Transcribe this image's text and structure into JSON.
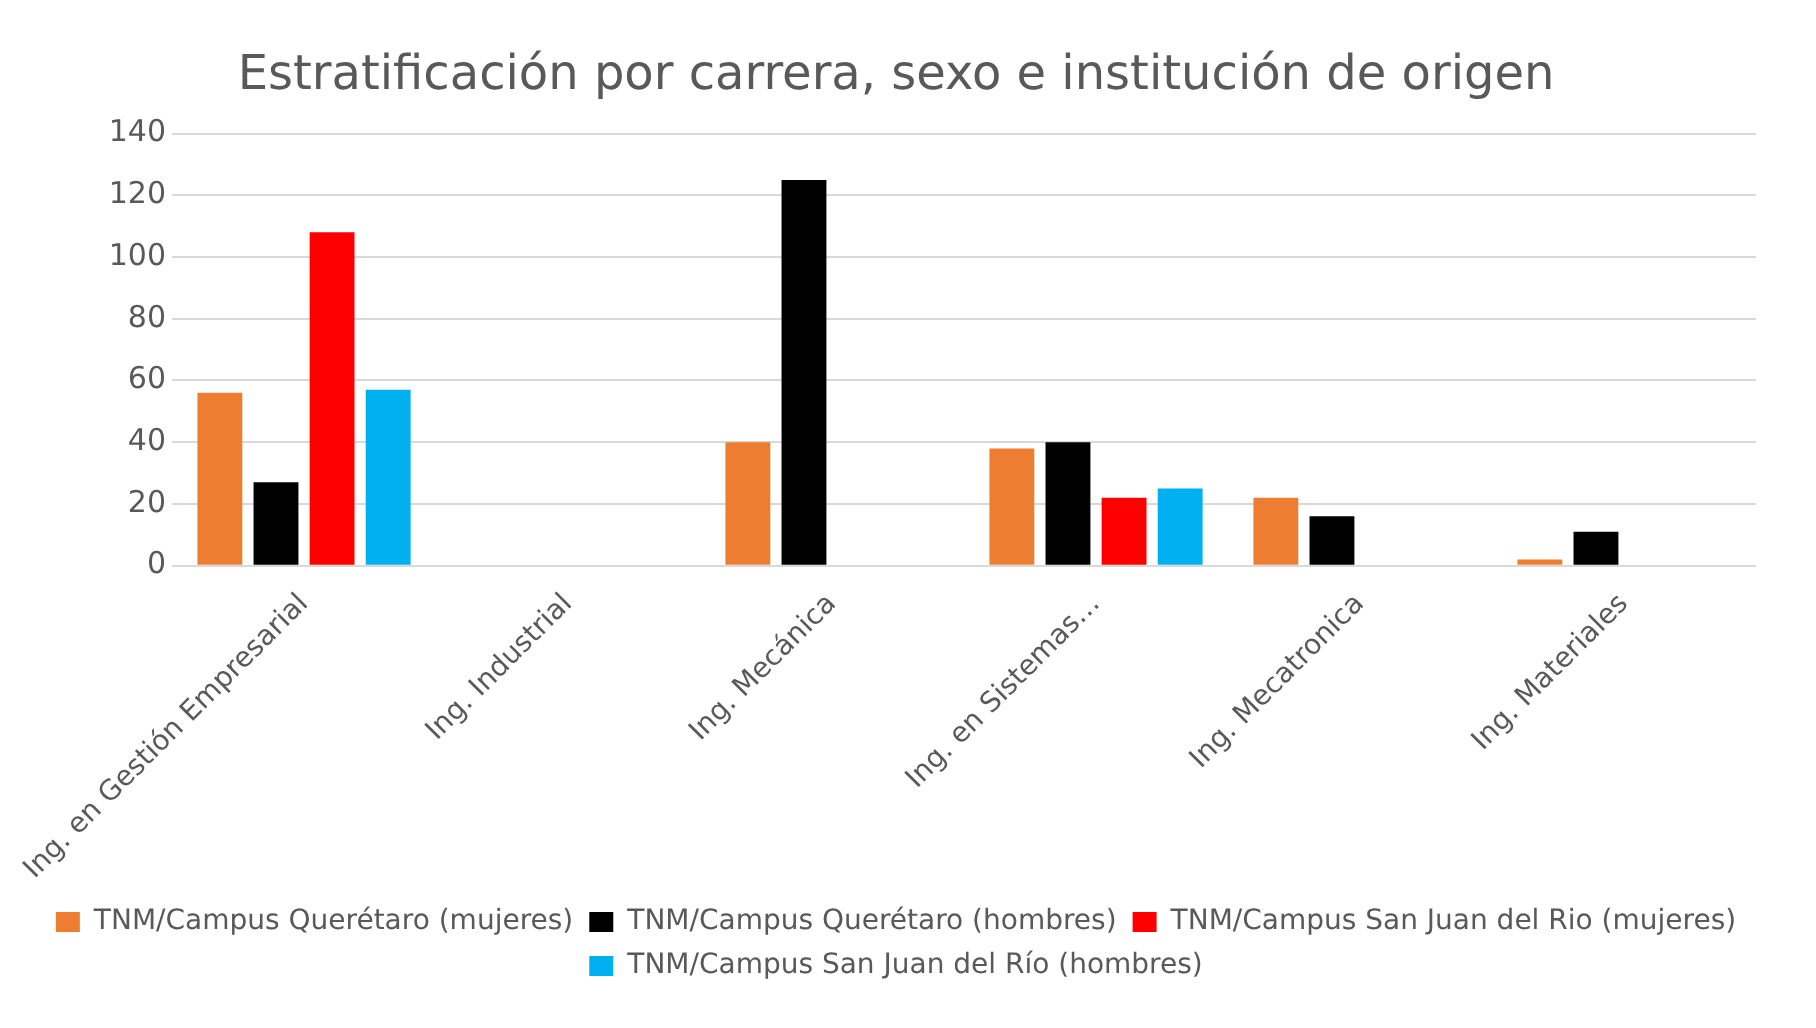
{
  "chart_data": {
    "type": "bar",
    "title": "Estratificación por carrera, sexo e institución de origen",
    "categories": [
      "Ing. en Gestión Empresarial",
      "Ing. Industrial",
      "Ing. Mecánica",
      "Ing. en Sistemas…",
      "Ing. Mecatronica",
      "Ing. Materiales"
    ],
    "series": [
      {
        "name": "TNM/Campus Querétaro (mujeres)",
        "color": "#ed7d31",
        "values": [
          56,
          null,
          40,
          38,
          22,
          2
        ]
      },
      {
        "name": "TNM/Campus Querétaro (hombres)",
        "color": "#000000",
        "values": [
          27,
          null,
          125,
          40,
          16,
          11
        ]
      },
      {
        "name": "TNM/Campus San Juan del Rio (mujeres)",
        "color": "#ff0000",
        "values": [
          108,
          null,
          null,
          22,
          null,
          null
        ]
      },
      {
        "name": "TNM/Campus San Juan del Río (hombres)",
        "color": "#00b0f0",
        "values": [
          57,
          null,
          null,
          25,
          null,
          null
        ]
      }
    ],
    "ylim": [
      0,
      140
    ],
    "yticks": [
      0,
      20,
      40,
      60,
      80,
      100,
      120,
      140
    ],
    "grid": "y",
    "legend": "bottom"
  }
}
